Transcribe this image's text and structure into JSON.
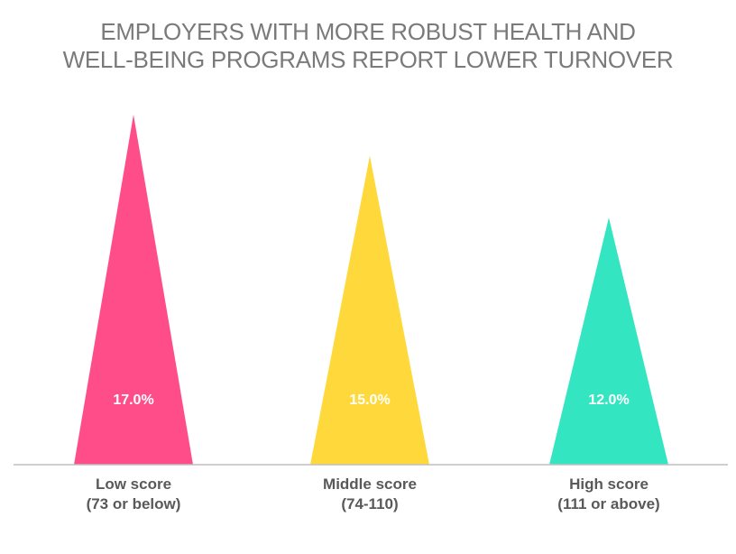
{
  "chart_data": {
    "type": "bar",
    "title_lines": [
      "EMPLOYERS WITH MORE ROBUST HEALTH AND",
      "WELL-BEING PROGRAMS REPORT LOWER TURNOVER"
    ],
    "categories": [
      [
        "Low score",
        "(73 or below)"
      ],
      [
        "Middle score",
        "(74-110)"
      ],
      [
        "High score",
        "(111 or above)"
      ]
    ],
    "values": [
      17.0,
      15.0,
      12.0
    ],
    "value_labels": [
      "17.0%",
      "15.0%",
      "12.0%"
    ],
    "colors": [
      "#ff4d8a",
      "#ffd93b",
      "#33e6c1"
    ],
    "shape": "triangle",
    "xlabel": "",
    "ylabel": "",
    "ylim": [
      0,
      17
    ],
    "grid": false,
    "legend": "none"
  }
}
